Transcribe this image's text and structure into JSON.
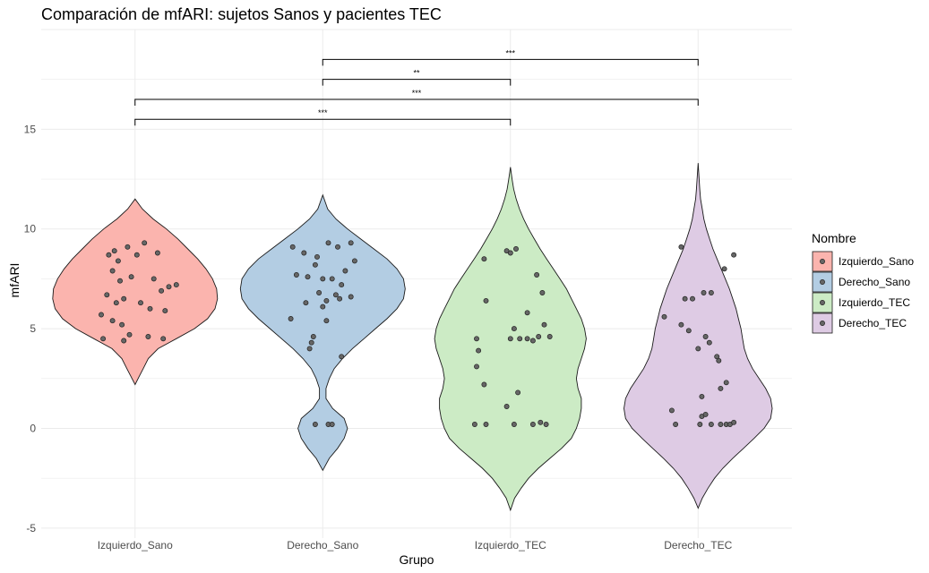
{
  "chart_data": {
    "type": "violin",
    "title": "Comparación de mfARI: sujetos Sanos y pacientes TEC",
    "xlabel": "Grupo",
    "ylabel": "mfARI",
    "ylim": [
      -5.5,
      20
    ],
    "yticks": [
      -5,
      0,
      5,
      10,
      15
    ],
    "grid": true,
    "legend": {
      "title": "Nombre",
      "position": "right",
      "entries": [
        "Izquierdo_Sano",
        "Derecho_Sano",
        "Izquierdo_TEC",
        "Derecho_TEC"
      ]
    },
    "categories": [
      "Izquierdo_Sano",
      "Derecho_Sano",
      "Izquierdo_TEC",
      "Derecho_TEC"
    ],
    "colors": [
      "#fbb4ae",
      "#b3cde3",
      "#ccebc5",
      "#decbe4"
    ],
    "series": [
      {
        "name": "Izquierdo_Sano",
        "ymin": 2.2,
        "ymax": 11.5,
        "profile": [
          [
            2.2,
            0
          ],
          [
            2.6,
            0.05
          ],
          [
            3.0,
            0.1
          ],
          [
            3.5,
            0.16
          ],
          [
            4.0,
            0.28
          ],
          [
            4.5,
            0.5
          ],
          [
            5.0,
            0.72
          ],
          [
            5.5,
            0.88
          ],
          [
            6.0,
            0.97
          ],
          [
            6.5,
            1.0
          ],
          [
            7.0,
            0.99
          ],
          [
            7.5,
            0.94
          ],
          [
            8.0,
            0.86
          ],
          [
            8.5,
            0.76
          ],
          [
            9.0,
            0.64
          ],
          [
            9.5,
            0.52
          ],
          [
            10.0,
            0.38
          ],
          [
            10.5,
            0.22
          ],
          [
            11.0,
            0.09
          ],
          [
            11.5,
            0
          ]
        ],
        "points": [
          [
            0.05,
            9.3
          ],
          [
            -0.14,
            8.7
          ],
          [
            -0.09,
            8.4
          ],
          [
            -0.12,
            7.9
          ],
          [
            -0.08,
            7.4
          ],
          [
            -0.02,
            7.6
          ],
          [
            0.12,
            8.8
          ],
          [
            0.18,
            7.1
          ],
          [
            0.22,
            7.2
          ],
          [
            0.1,
            7.5
          ],
          [
            0.14,
            6.9
          ],
          [
            -0.15,
            6.7
          ],
          [
            -0.06,
            6.5
          ],
          [
            0.03,
            6.3
          ],
          [
            -0.1,
            6.3
          ],
          [
            0.08,
            6.0
          ],
          [
            0.16,
            5.9
          ],
          [
            -0.18,
            5.7
          ],
          [
            -0.12,
            5.4
          ],
          [
            -0.07,
            5.2
          ],
          [
            -0.03,
            4.7
          ],
          [
            0.07,
            4.6
          ],
          [
            0.15,
            4.5
          ],
          [
            -0.17,
            4.5
          ],
          [
            -0.06,
            4.4
          ],
          [
            -0.11,
            8.9
          ],
          [
            -0.04,
            9.1
          ],
          [
            0.01,
            8.7
          ]
        ]
      },
      {
        "name": "Derecho_Sano",
        "ymin": -2.1,
        "ymax": 11.7,
        "profile": [
          [
            -2.1,
            0
          ],
          [
            -1.5,
            0.08
          ],
          [
            -1.0,
            0.18
          ],
          [
            -0.5,
            0.26
          ],
          [
            0,
            0.3
          ],
          [
            0.5,
            0.26
          ],
          [
            1.0,
            0.12
          ],
          [
            1.5,
            0.04
          ],
          [
            2.0,
            0.04
          ],
          [
            2.5,
            0.08
          ],
          [
            3.0,
            0.14
          ],
          [
            3.5,
            0.24
          ],
          [
            4.0,
            0.36
          ],
          [
            4.5,
            0.5
          ],
          [
            5.0,
            0.64
          ],
          [
            5.5,
            0.78
          ],
          [
            6.0,
            0.9
          ],
          [
            6.5,
            0.98
          ],
          [
            7.0,
            1.0
          ],
          [
            7.5,
            0.98
          ],
          [
            8.0,
            0.9
          ],
          [
            8.5,
            0.78
          ],
          [
            9.0,
            0.62
          ],
          [
            9.5,
            0.46
          ],
          [
            10.0,
            0.3
          ],
          [
            10.5,
            0.16
          ],
          [
            11.0,
            0.06
          ],
          [
            11.7,
            0
          ]
        ],
        "points": [
          [
            -0.16,
            9.1
          ],
          [
            -0.1,
            8.8
          ],
          [
            0.03,
            9.3
          ],
          [
            0.15,
            9.3
          ],
          [
            0.08,
            9.1
          ],
          [
            -0.03,
            8.6
          ],
          [
            -0.14,
            7.7
          ],
          [
            -0.04,
            8.2
          ],
          [
            0.17,
            8.4
          ],
          [
            0.12,
            7.9
          ],
          [
            -0.08,
            7.6
          ],
          [
            0.0,
            7.5
          ],
          [
            0.05,
            7.5
          ],
          [
            0.1,
            7.2
          ],
          [
            -0.02,
            6.8
          ],
          [
            0.07,
            6.7
          ],
          [
            0.15,
            6.6
          ],
          [
            0.02,
            6.4
          ],
          [
            -0.09,
            6.3
          ],
          [
            0.09,
            6.5
          ],
          [
            0.0,
            6.1
          ],
          [
            -0.17,
            5.5
          ],
          [
            0.02,
            5.4
          ],
          [
            -0.05,
            4.6
          ],
          [
            -0.06,
            4.3
          ],
          [
            -0.07,
            4.0
          ],
          [
            0.1,
            3.6
          ],
          [
            0.03,
            0.2
          ],
          [
            0.05,
            0.2
          ],
          [
            -0.04,
            0.2
          ]
        ]
      },
      {
        "name": "Izquierdo_TEC",
        "ymin": -4.1,
        "ymax": 13.1,
        "profile": [
          [
            -4.1,
            0
          ],
          [
            -3.5,
            0.05
          ],
          [
            -3.0,
            0.13
          ],
          [
            -2.5,
            0.22
          ],
          [
            -2.0,
            0.34
          ],
          [
            -1.5,
            0.48
          ],
          [
            -1.0,
            0.62
          ],
          [
            -0.5,
            0.74
          ],
          [
            0,
            0.8
          ],
          [
            0.5,
            0.84
          ],
          [
            1.0,
            0.86
          ],
          [
            1.5,
            0.86
          ],
          [
            2.0,
            0.82
          ],
          [
            2.5,
            0.8
          ],
          [
            3.0,
            0.82
          ],
          [
            3.5,
            0.86
          ],
          [
            4.0,
            0.9
          ],
          [
            4.5,
            0.92
          ],
          [
            5.0,
            0.9
          ],
          [
            5.5,
            0.86
          ],
          [
            6.0,
            0.8
          ],
          [
            6.5,
            0.74
          ],
          [
            7.0,
            0.68
          ],
          [
            7.5,
            0.6
          ],
          [
            8.0,
            0.52
          ],
          [
            8.5,
            0.44
          ],
          [
            9.0,
            0.36
          ],
          [
            9.5,
            0.29
          ],
          [
            10.0,
            0.22
          ],
          [
            10.5,
            0.16
          ],
          [
            11.0,
            0.11
          ],
          [
            11.5,
            0.07
          ],
          [
            12.0,
            0.04
          ],
          [
            12.5,
            0.02
          ],
          [
            13.1,
            0
          ]
        ],
        "points": [
          [
            -0.14,
            8.5
          ],
          [
            -0.02,
            8.9
          ],
          [
            0.0,
            8.8
          ],
          [
            0.03,
            9.0
          ],
          [
            0.14,
            7.7
          ],
          [
            0.17,
            6.8
          ],
          [
            -0.13,
            6.4
          ],
          [
            0.09,
            5.8
          ],
          [
            0.18,
            5.2
          ],
          [
            0.02,
            5.0
          ],
          [
            -0.18,
            4.5
          ],
          [
            0.15,
            4.6
          ],
          [
            0.05,
            4.5
          ],
          [
            0.0,
            4.5
          ],
          [
            0.12,
            4.4
          ],
          [
            0.09,
            4.5
          ],
          [
            -0.17,
            3.9
          ],
          [
            -0.18,
            3.1
          ],
          [
            0.21,
            4.6
          ],
          [
            -0.14,
            2.2
          ],
          [
            0.04,
            1.8
          ],
          [
            -0.02,
            1.1
          ],
          [
            -0.19,
            0.2
          ],
          [
            -0.13,
            0.2
          ],
          [
            0.02,
            0.2
          ],
          [
            0.12,
            0.2
          ],
          [
            0.16,
            0.3
          ],
          [
            0.19,
            0.2
          ]
        ]
      },
      {
        "name": "Derecho_TEC",
        "ymin": -4.0,
        "ymax": 13.3,
        "profile": [
          [
            -4.0,
            0
          ],
          [
            -3.5,
            0.05
          ],
          [
            -3.0,
            0.12
          ],
          [
            -2.5,
            0.2
          ],
          [
            -2.0,
            0.3
          ],
          [
            -1.5,
            0.42
          ],
          [
            -1.0,
            0.55
          ],
          [
            -0.5,
            0.68
          ],
          [
            0,
            0.8
          ],
          [
            0.5,
            0.88
          ],
          [
            1.0,
            0.9
          ],
          [
            1.5,
            0.88
          ],
          [
            2.0,
            0.82
          ],
          [
            2.5,
            0.74
          ],
          [
            3.0,
            0.66
          ],
          [
            3.5,
            0.6
          ],
          [
            4.0,
            0.56
          ],
          [
            4.5,
            0.54
          ],
          [
            5.0,
            0.52
          ],
          [
            5.5,
            0.49
          ],
          [
            6.0,
            0.46
          ],
          [
            6.5,
            0.42
          ],
          [
            7.0,
            0.38
          ],
          [
            7.5,
            0.33
          ],
          [
            8.0,
            0.28
          ],
          [
            8.5,
            0.23
          ],
          [
            9.0,
            0.18
          ],
          [
            9.5,
            0.14
          ],
          [
            10.0,
            0.1
          ],
          [
            10.5,
            0.07
          ],
          [
            11.0,
            0.05
          ],
          [
            11.5,
            0.03
          ],
          [
            12.0,
            0.02
          ],
          [
            13.3,
            0
          ]
        ],
        "points": [
          [
            -0.09,
            9.1
          ],
          [
            0.14,
            8.0
          ],
          [
            0.19,
            8.7
          ],
          [
            0.03,
            6.8
          ],
          [
            0.07,
            6.8
          ],
          [
            -0.07,
            6.5
          ],
          [
            -0.03,
            6.5
          ],
          [
            -0.18,
            5.6
          ],
          [
            -0.09,
            5.2
          ],
          [
            -0.05,
            4.9
          ],
          [
            0.04,
            4.6
          ],
          [
            0.06,
            4.3
          ],
          [
            0.1,
            3.6
          ],
          [
            0.11,
            3.4
          ],
          [
            0.0,
            4.0
          ],
          [
            0.15,
            2.3
          ],
          [
            0.12,
            2.0
          ],
          [
            0.02,
            1.6
          ],
          [
            -0.14,
            0.9
          ],
          [
            0.02,
            0.6
          ],
          [
            0.04,
            0.7
          ],
          [
            -0.12,
            0.2
          ],
          [
            0.01,
            0.2
          ],
          [
            0.07,
            0.2
          ],
          [
            0.12,
            0.2
          ],
          [
            0.15,
            0.2
          ],
          [
            0.17,
            0.2
          ],
          [
            0.19,
            0.3
          ]
        ]
      }
    ],
    "comparisons": [
      {
        "groups": [
          1,
          3
        ],
        "y": 18.5,
        "label": "***"
      },
      {
        "groups": [
          1,
          2
        ],
        "y": 17.5,
        "label": "**"
      },
      {
        "groups": [
          0,
          3
        ],
        "y": 16.5,
        "label": "***"
      },
      {
        "groups": [
          0,
          2
        ],
        "y": 15.5,
        "label": "***"
      }
    ]
  }
}
